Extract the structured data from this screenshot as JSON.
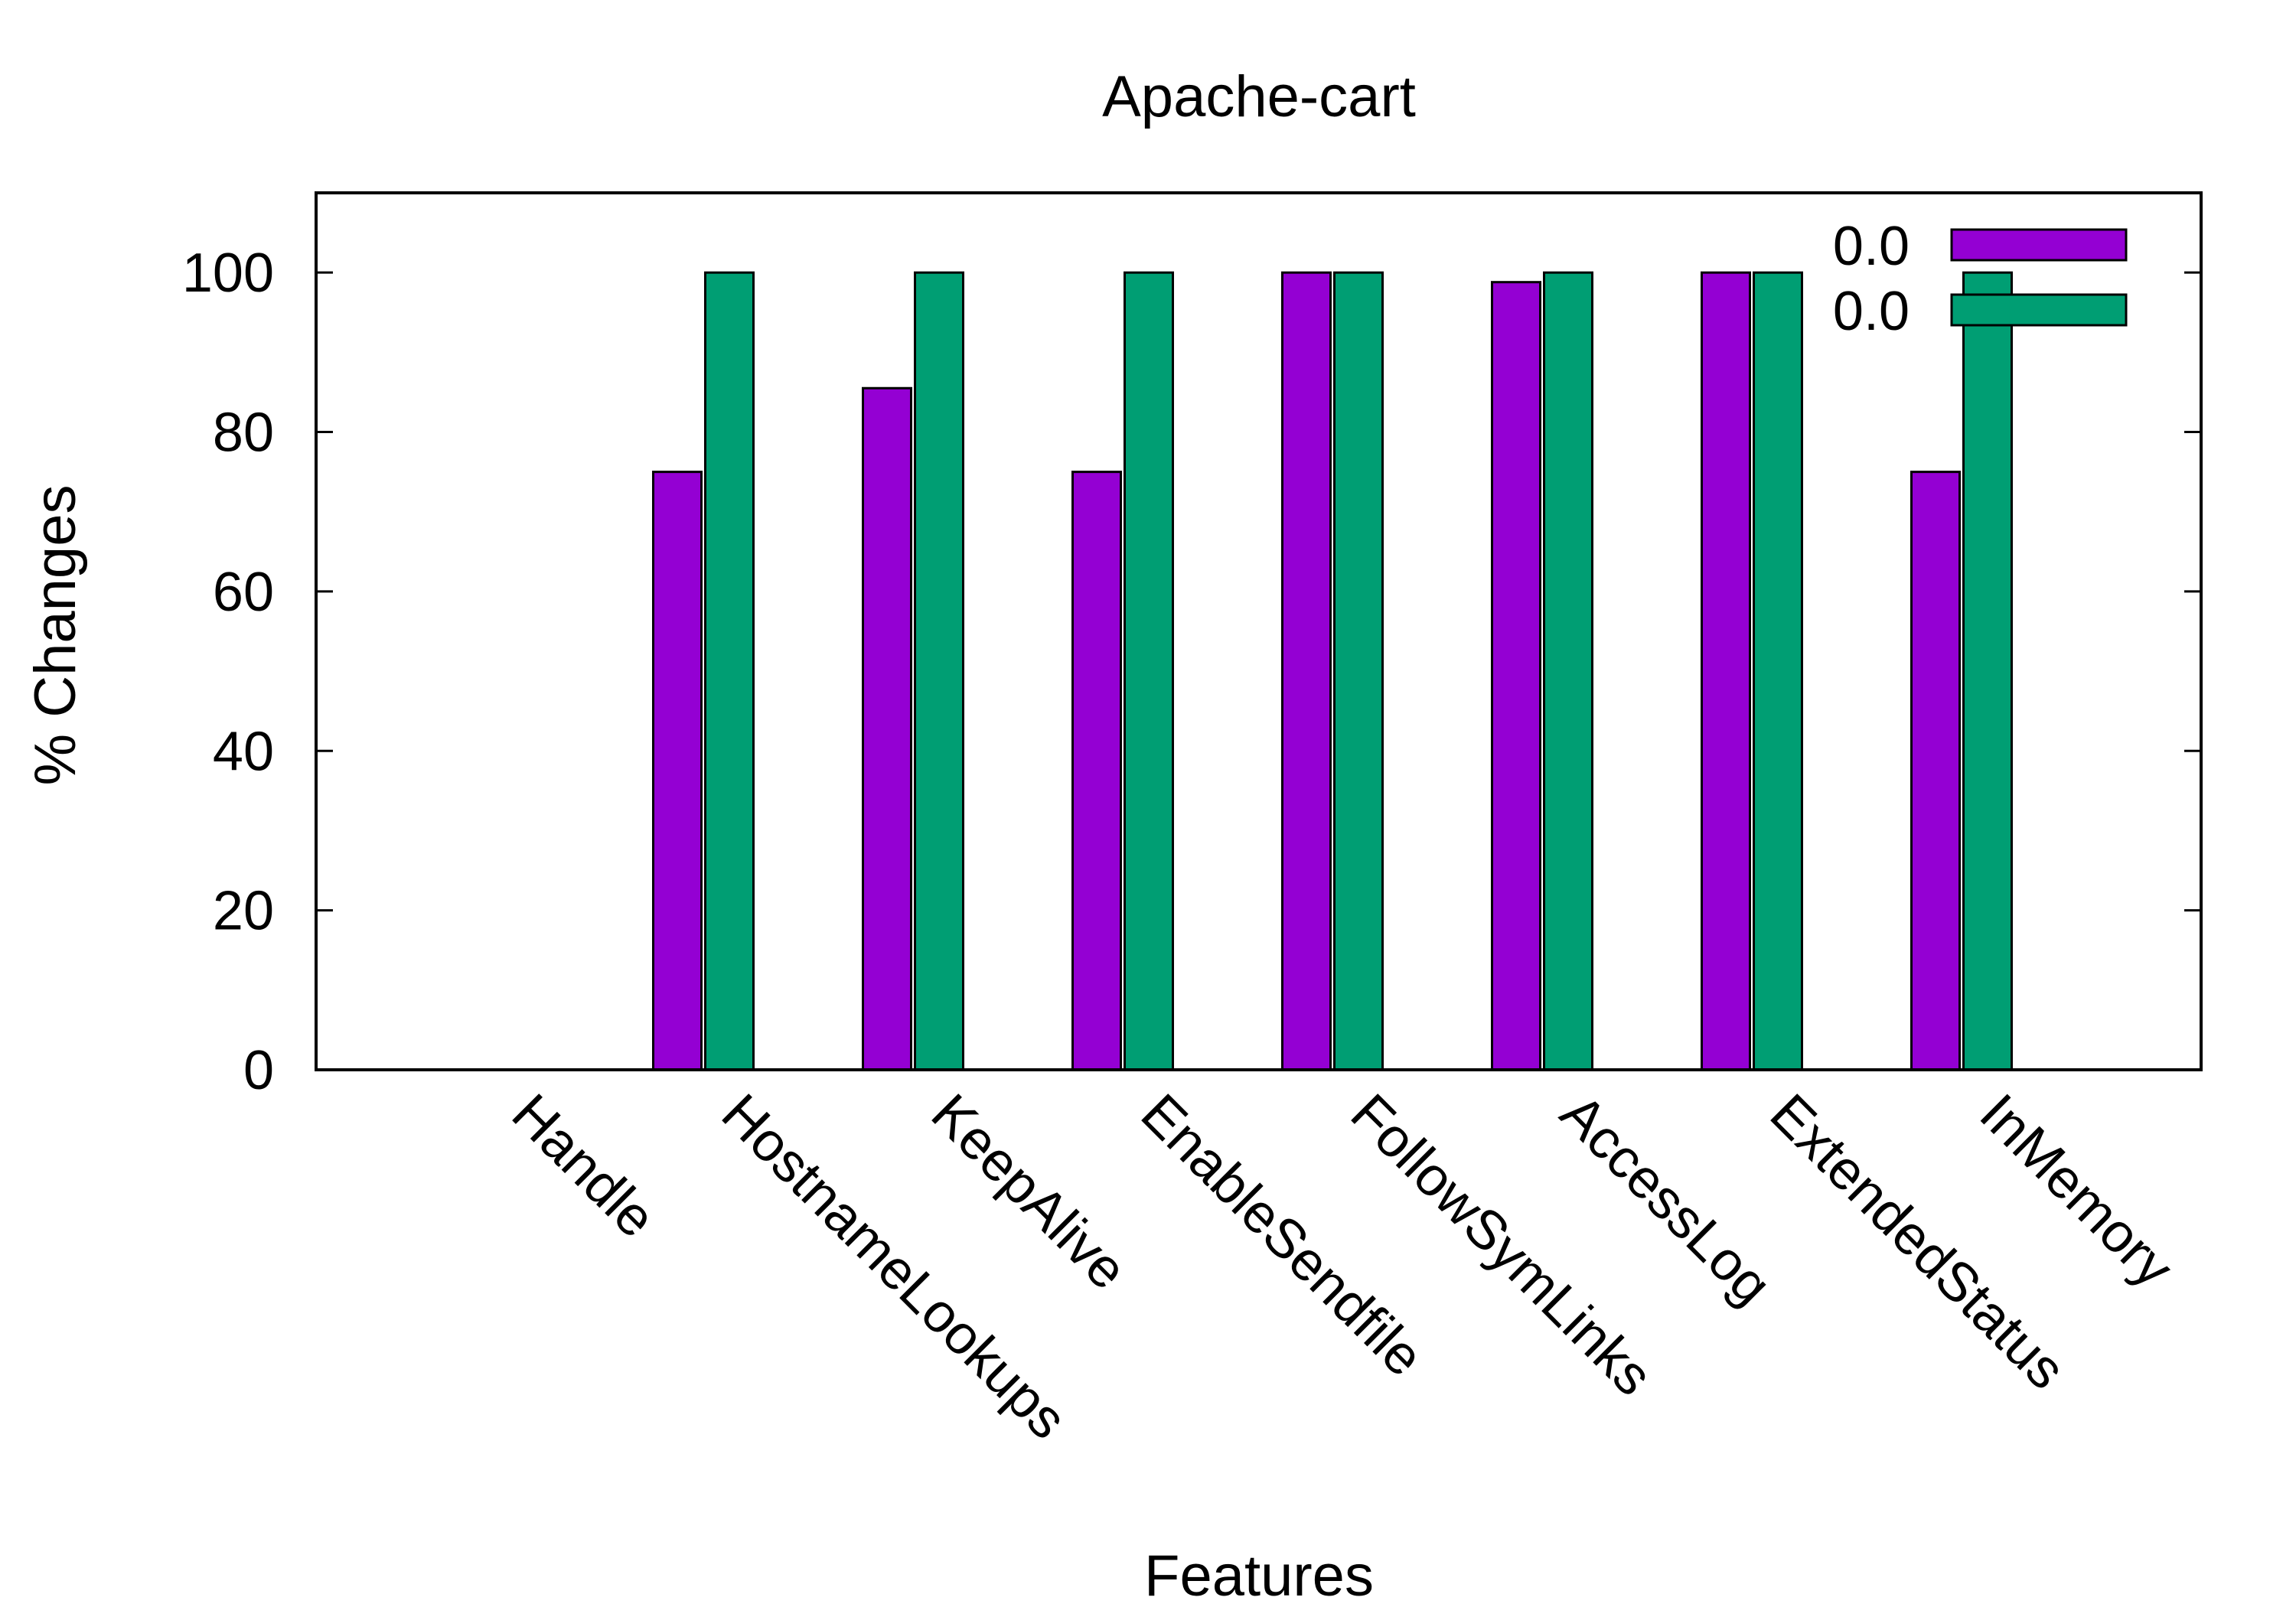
{
  "chart_data": {
    "type": "bar",
    "title": "Apache-cart",
    "xlabel": "Features",
    "ylabel": "% Changes",
    "ylim": [
      0,
      110
    ],
    "yticks": [
      0,
      20,
      40,
      60,
      80,
      100
    ],
    "grid": false,
    "legend_position": "top-right",
    "categories": [
      "Handle",
      "HostnameLookups",
      "KeepAlive",
      "EnableSendfile",
      "FollowSymLinks",
      "AccessLog",
      "ExtendedStatus",
      "InMemory"
    ],
    "series": [
      {
        "name": "0.0",
        "color": "#9400d3",
        "values": [
          0,
          75,
          85.5,
          75,
          100,
          98.8,
          100,
          75
        ]
      },
      {
        "name": "0.0",
        "color": "#009e73",
        "values": [
          0,
          100,
          100,
          100,
          100,
          100,
          100,
          100
        ]
      }
    ]
  }
}
